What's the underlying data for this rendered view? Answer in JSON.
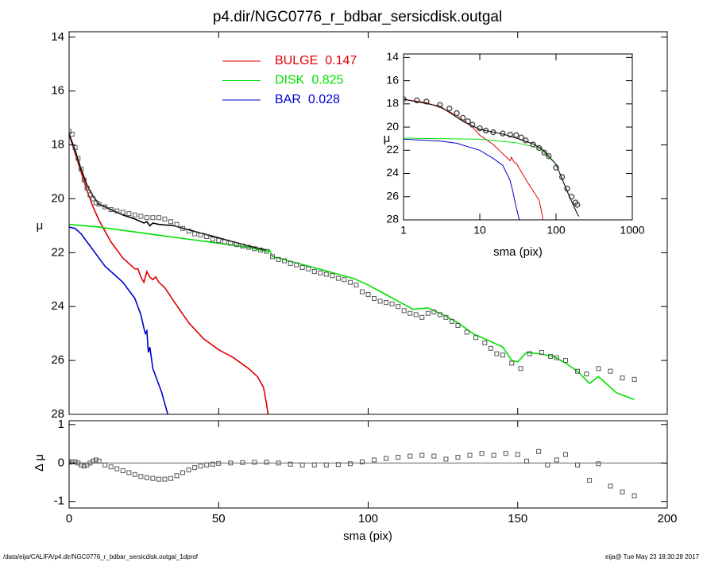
{
  "chart_data": [
    {
      "type": "line",
      "title": "p4.dir/NGC0776_r_bdbar_sersicdisk.outgal",
      "ylabel": "μ",
      "xlim": [
        0,
        200
      ],
      "xticks": [
        0,
        50,
        100,
        150,
        200
      ],
      "xtick_labels": false,
      "ylim": [
        28,
        13.8
      ],
      "yticks": [
        14,
        16,
        18,
        20,
        22,
        24,
        26,
        28
      ],
      "series": [
        {
          "name": "BULGE",
          "fraction": 0.147,
          "color": "#e00000",
          "style": "line",
          "x": [
            0,
            2,
            4,
            6,
            8,
            10,
            12,
            14,
            16,
            18,
            20,
            22,
            23,
            24,
            25,
            26,
            27,
            28,
            29,
            30,
            32,
            35,
            40,
            45,
            50,
            55,
            60,
            63,
            65,
            66,
            66.5
          ],
          "values": [
            17.6,
            18.3,
            19.0,
            19.7,
            20.3,
            20.8,
            21.2,
            21.6,
            21.9,
            22.2,
            22.4,
            22.6,
            22.6,
            22.9,
            23.1,
            22.7,
            22.9,
            23.0,
            22.9,
            23.1,
            23.3,
            23.8,
            24.6,
            25.2,
            25.6,
            25.9,
            26.3,
            26.6,
            27.0,
            27.6,
            28.0
          ]
        },
        {
          "name": "DISK",
          "fraction": 0.825,
          "color": "#00e000",
          "style": "line",
          "x": [
            0,
            10,
            20,
            30,
            40,
            50,
            60,
            66,
            67,
            68,
            70,
            75,
            80,
            85,
            90,
            95,
            100,
            105,
            110,
            115,
            120,
            125,
            130,
            135,
            140,
            145,
            148,
            150,
            153,
            157,
            162,
            166,
            170,
            174,
            177,
            183,
            189
          ],
          "values": [
            20.95,
            21.05,
            21.2,
            21.35,
            21.5,
            21.65,
            21.8,
            21.95,
            21.9,
            22.15,
            22.2,
            22.35,
            22.5,
            22.65,
            22.8,
            22.95,
            23.2,
            23.5,
            23.8,
            24.1,
            24.05,
            24.3,
            24.6,
            25.0,
            25.25,
            25.5,
            26.0,
            26.05,
            25.7,
            25.75,
            25.85,
            26.1,
            26.4,
            26.85,
            26.6,
            27.2,
            27.45
          ]
        },
        {
          "name": "BAR",
          "fraction": 0.028,
          "color": "#0000d0",
          "style": "line",
          "x": [
            0,
            2,
            4,
            6,
            8,
            10,
            12,
            15,
            18,
            20,
            22,
            23,
            24,
            25,
            25.5,
            26,
            26.5,
            27,
            28,
            29,
            30,
            31,
            32,
            33
          ],
          "values": [
            21.05,
            21.1,
            21.3,
            21.6,
            21.9,
            22.2,
            22.5,
            22.8,
            23.1,
            23.4,
            23.7,
            24.0,
            24.3,
            24.8,
            25.0,
            24.9,
            25.7,
            25.5,
            26.3,
            26.6,
            26.9,
            27.2,
            27.6,
            28.0
          ]
        },
        {
          "color": "#000000",
          "style": "line",
          "x": [
            0,
            2,
            4,
            6,
            8,
            10,
            14,
            18,
            22,
            25,
            26,
            27,
            28,
            30,
            35,
            40,
            45,
            50,
            55,
            60,
            66
          ],
          "values": [
            17.6,
            18.2,
            18.9,
            19.5,
            19.9,
            20.2,
            20.4,
            20.6,
            20.75,
            20.9,
            20.85,
            21.0,
            20.9,
            20.95,
            21.0,
            21.15,
            21.3,
            21.45,
            21.6,
            21.75,
            21.9
          ]
        },
        {
          "color": "#555555",
          "style": "points",
          "x": [
            0,
            1,
            2,
            3,
            4,
            5,
            6,
            7,
            8,
            9,
            10,
            12,
            14,
            16,
            18,
            20,
            22,
            24,
            26,
            28,
            30,
            32,
            34,
            36,
            38,
            40,
            42,
            44,
            46,
            48,
            50,
            52,
            54,
            56,
            58,
            60,
            62,
            64,
            66,
            68,
            70,
            72,
            74,
            76,
            78,
            80,
            82,
            84,
            86,
            88,
            90,
            92,
            94,
            96,
            98,
            100,
            102,
            104,
            106,
            108,
            110,
            112,
            114,
            116,
            118,
            120,
            122,
            124,
            126,
            128,
            130,
            133,
            136,
            139,
            141,
            143,
            145,
            148,
            151,
            154,
            158,
            161,
            163,
            166,
            170,
            173,
            177,
            181,
            185,
            189
          ],
          "values": [
            17.5,
            17.6,
            18.1,
            18.5,
            18.9,
            19.3,
            19.6,
            19.85,
            20.0,
            20.15,
            20.2,
            20.3,
            20.4,
            20.45,
            20.5,
            20.55,
            20.6,
            20.65,
            20.7,
            20.7,
            20.7,
            20.75,
            20.85,
            20.95,
            21.1,
            21.2,
            21.3,
            21.35,
            21.4,
            21.5,
            21.55,
            21.6,
            21.65,
            21.7,
            21.75,
            21.8,
            21.85,
            21.9,
            21.95,
            22.15,
            22.25,
            22.3,
            22.4,
            22.45,
            22.55,
            22.6,
            22.7,
            22.75,
            22.8,
            22.85,
            22.95,
            23.0,
            23.1,
            23.2,
            23.45,
            23.55,
            23.7,
            23.8,
            23.85,
            23.9,
            24.0,
            24.15,
            24.25,
            24.3,
            24.4,
            24.25,
            24.2,
            24.3,
            24.4,
            24.55,
            24.7,
            24.95,
            25.15,
            25.35,
            25.55,
            25.75,
            25.8,
            26.1,
            26.3,
            25.75,
            25.7,
            25.85,
            25.9,
            26.0,
            26.4,
            26.5,
            26.3,
            26.4,
            26.65,
            26.7
          ]
        }
      ]
    },
    {
      "type": "line",
      "xlabel": "sma (pix)",
      "ylabel": "Δ μ",
      "xlim": [
        0,
        200
      ],
      "xticks": [
        0,
        50,
        100,
        150,
        200
      ],
      "ylim": [
        -1.17,
        1.1
      ],
      "yticks": [
        -1,
        0,
        1
      ],
      "reference_line": 0,
      "series": [
        {
          "color": "#555555",
          "style": "points",
          "x": [
            0,
            1,
            2,
            3,
            4,
            5,
            6,
            7,
            8,
            9,
            10,
            12,
            14,
            16,
            18,
            20,
            22,
            24,
            26,
            28,
            30,
            32,
            34,
            36,
            38,
            40,
            42,
            44,
            46,
            48,
            50,
            54,
            58,
            62,
            66,
            70,
            74,
            78,
            82,
            86,
            90,
            94,
            98,
            102,
            106,
            110,
            114,
            118,
            122,
            126,
            130,
            134,
            138,
            142,
            146,
            150,
            153,
            157,
            160,
            163,
            166,
            170,
            174,
            177,
            181,
            185,
            189
          ],
          "values": [
            0.02,
            0.03,
            0.03,
            0.0,
            -0.05,
            -0.08,
            -0.05,
            0.0,
            0.05,
            0.08,
            0.05,
            -0.05,
            -0.1,
            -0.15,
            -0.2,
            -0.25,
            -0.3,
            -0.35,
            -0.38,
            -0.4,
            -0.42,
            -0.42,
            -0.4,
            -0.33,
            -0.25,
            -0.18,
            -0.12,
            -0.08,
            -0.05,
            -0.03,
            -0.01,
            0.0,
            0.01,
            0.02,
            0.02,
            0.0,
            -0.03,
            -0.05,
            -0.05,
            -0.05,
            -0.04,
            -0.02,
            0.03,
            0.08,
            0.12,
            0.15,
            0.18,
            0.2,
            0.18,
            0.1,
            0.15,
            0.2,
            0.25,
            0.2,
            0.25,
            0.22,
            0.05,
            0.3,
            -0.05,
            0.08,
            0.22,
            -0.05,
            -0.45,
            -0.02,
            -0.6,
            -0.75,
            -0.85
          ]
        }
      ]
    },
    {
      "type": "line",
      "xlabel": "sma (pix)",
      "ylabel": "μ",
      "xscale": "log",
      "xlim": [
        1,
        1000
      ],
      "xticks": [
        1,
        10,
        100,
        1000
      ],
      "ylim": [
        28,
        13.7
      ],
      "yticks": [
        14,
        16,
        18,
        20,
        22,
        24,
        26,
        28
      ],
      "series": [
        {
          "color": "#e00000",
          "style": "line",
          "x": [
            1,
            2,
            3,
            5,
            8,
            10,
            15,
            20,
            25,
            26,
            28,
            30,
            40,
            50,
            60,
            66,
            67
          ],
          "values": [
            17.6,
            17.9,
            18.3,
            19.0,
            20.0,
            20.7,
            21.5,
            22.3,
            22.9,
            22.6,
            23.0,
            23.1,
            24.5,
            25.5,
            26.3,
            27.6,
            28.0
          ]
        },
        {
          "color": "#00e000",
          "style": "line",
          "x": [
            1,
            10,
            30,
            60,
            100,
            150,
            189
          ],
          "values": [
            20.95,
            21.05,
            21.35,
            21.8,
            23.2,
            26.0,
            27.45
          ]
        },
        {
          "color": "#0000d0",
          "style": "line",
          "x": [
            1,
            3,
            5,
            10,
            15,
            20,
            25,
            27,
            30,
            33
          ],
          "values": [
            21.05,
            21.2,
            21.4,
            22.0,
            22.7,
            23.3,
            24.6,
            25.5,
            26.9,
            28.0
          ]
        },
        {
          "color": "#555555",
          "style": "points",
          "x": [
            1,
            1.5,
            2,
            3,
            4,
            5,
            6,
            7,
            8,
            10,
            12,
            15,
            20,
            25,
            30,
            35,
            40,
            50,
            60,
            70,
            80,
            100,
            120,
            140,
            160,
            180,
            190
          ],
          "values": [
            17.6,
            17.7,
            17.8,
            18.1,
            18.4,
            18.8,
            19.2,
            19.5,
            19.8,
            20.1,
            20.3,
            20.45,
            20.55,
            20.65,
            20.7,
            20.9,
            21.15,
            21.5,
            21.8,
            22.2,
            22.5,
            23.5,
            24.3,
            25.3,
            26.0,
            26.5,
            26.7
          ]
        },
        {
          "color": "#000000",
          "style": "line",
          "x": [
            1,
            3,
            6,
            10,
            20,
            30,
            50,
            66,
            100,
            150,
            189,
            200
          ],
          "values": [
            17.6,
            18.2,
            19.5,
            20.2,
            20.6,
            20.95,
            21.45,
            21.9,
            23.2,
            26.0,
            27.45,
            27.7
          ]
        }
      ]
    }
  ],
  "footer": {
    "left": "/data/eija/CALIFA/p4.dir/NGC0776_r_bdbar_sersicdisk.outgal_1dprof",
    "right": "eija@  Tue May 23 18:30:28 2017"
  }
}
